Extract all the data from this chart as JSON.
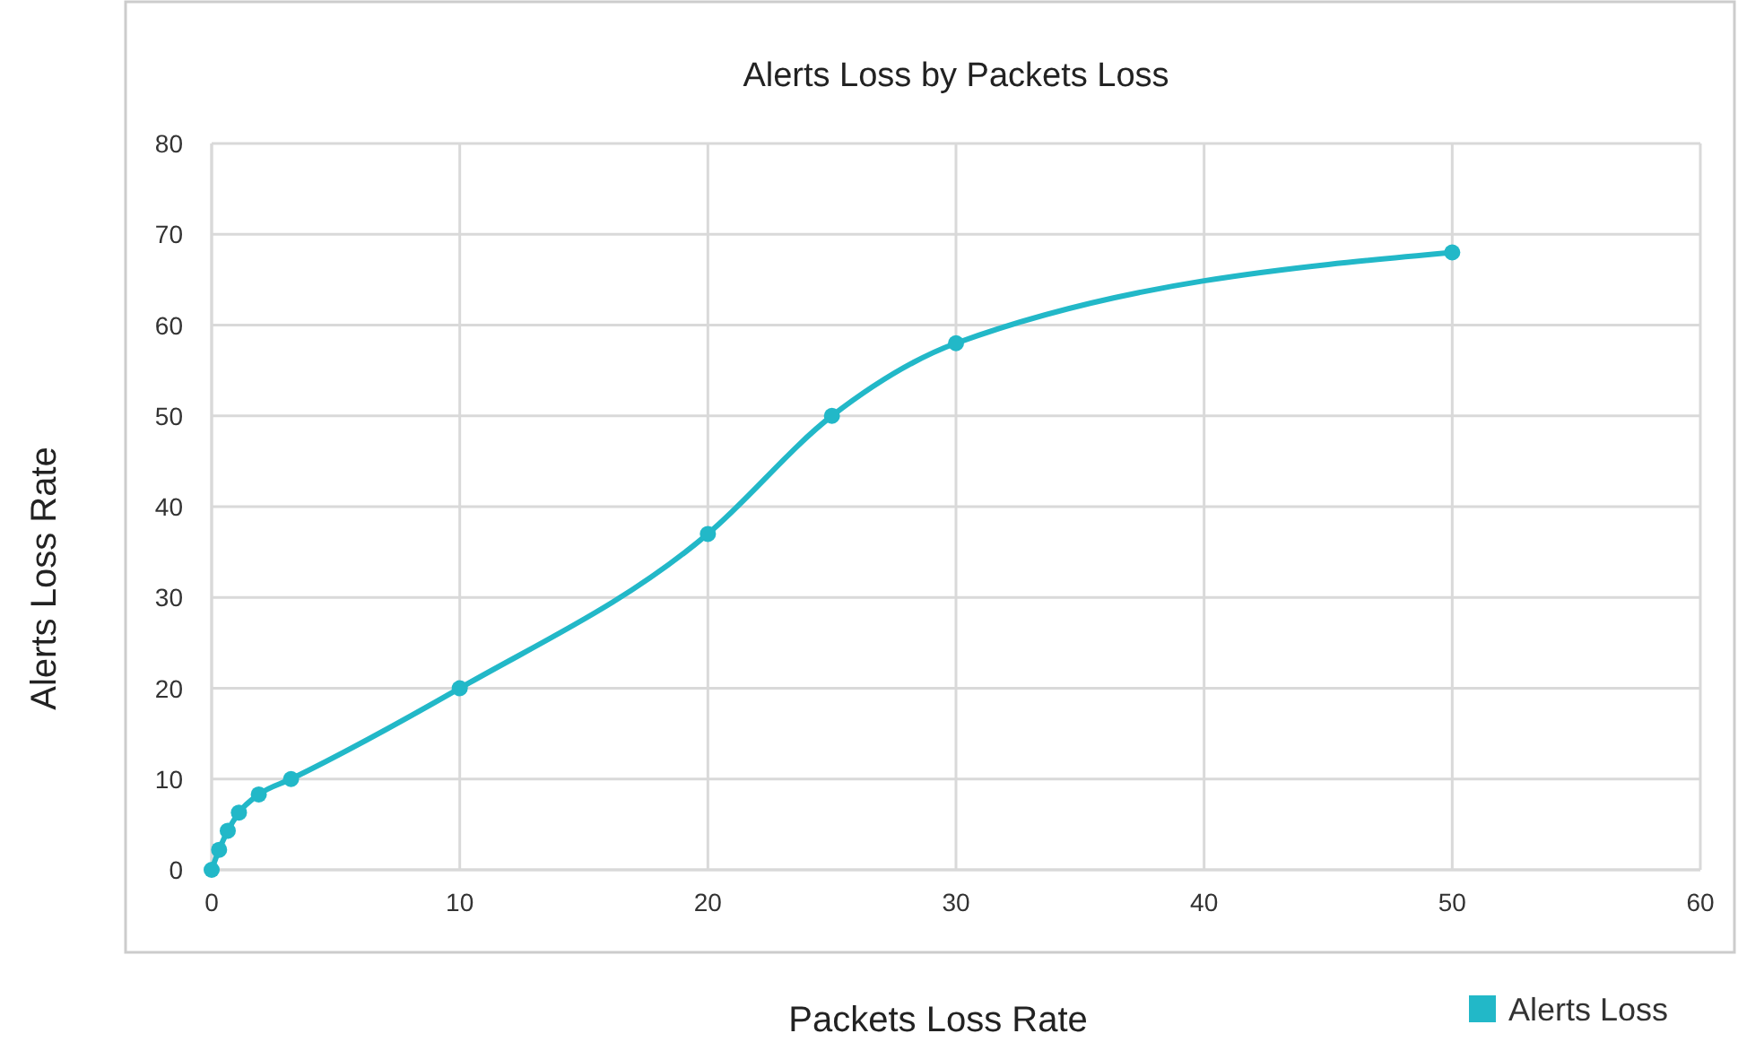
{
  "chart_data": {
    "type": "line",
    "title": "Alerts Loss by Packets Loss",
    "xlabel": "Packets Loss Rate",
    "ylabel": "Alerts Loss Rate",
    "x": [
      0,
      0.3,
      0.65,
      1.1,
      1.9,
      3.2,
      10,
      20,
      25,
      30,
      50
    ],
    "series": [
      {
        "name": "Alerts Loss",
        "color": "#22b8c8",
        "values": [
          0,
          2.2,
          4.3,
          6.3,
          8.3,
          10,
          20,
          37,
          50,
          58,
          68
        ]
      }
    ],
    "xlim": [
      0,
      60
    ],
    "xticks": [
      0,
      10,
      20,
      30,
      40,
      50,
      60
    ],
    "ylim": [
      0,
      80
    ],
    "yticks": [
      0,
      10,
      20,
      30,
      40,
      50,
      60,
      70,
      80
    ],
    "grid": true,
    "legend": "bottom right",
    "marker": "circle",
    "line_style": "solid"
  }
}
